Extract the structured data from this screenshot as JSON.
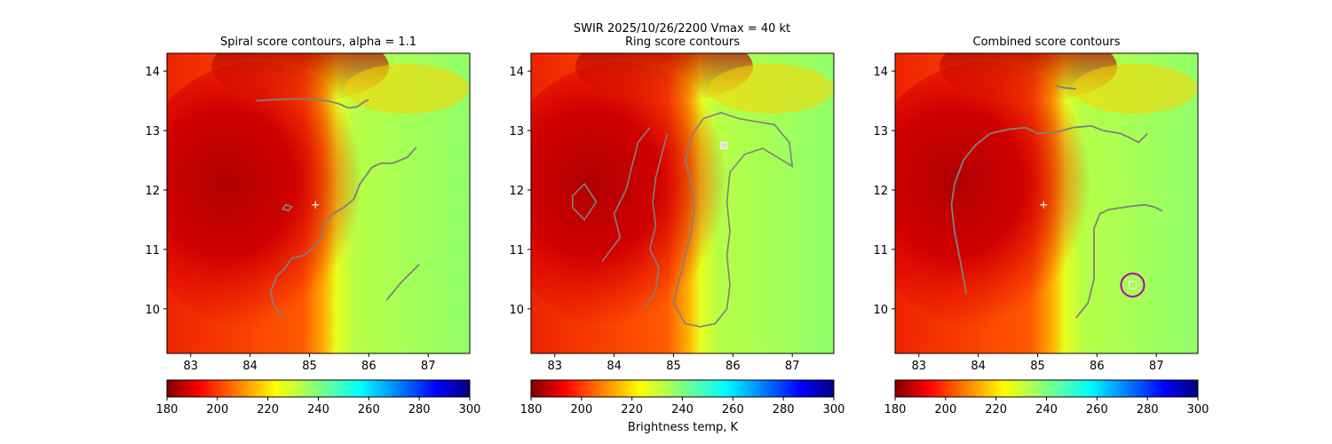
{
  "suptitle_line1": "SWIR  2025/10/26/2200    Vmax = 40 kt",
  "colorbar_label": "Brightness temp, K",
  "colormap": "jet",
  "contour_color": "#808080",
  "chart_data": [
    {
      "type": "heatmap",
      "title": "Spiral score contours, alpha =  1.1",
      "xlim": [
        82.6,
        87.7
      ],
      "ylim": [
        9.25,
        14.3
      ],
      "xticks": [
        "83",
        "84",
        "85",
        "86",
        "87"
      ],
      "yticks": [
        "10",
        "11",
        "12",
        "13",
        "14"
      ],
      "center_marker": {
        "symbol": "+",
        "lon": 85.1,
        "lat": 11.75
      },
      "contours": [
        [
          [
            84.1,
            13.5
          ],
          [
            84.4,
            13.52
          ],
          [
            84.7,
            13.53
          ],
          [
            85.0,
            13.53
          ],
          [
            85.3,
            13.5
          ],
          [
            85.5,
            13.45
          ],
          [
            85.65,
            13.38
          ],
          [
            85.8,
            13.4
          ],
          [
            85.95,
            13.5
          ],
          [
            86.0,
            13.52
          ]
        ],
        [
          [
            86.8,
            12.72
          ],
          [
            86.65,
            12.55
          ],
          [
            86.4,
            12.45
          ],
          [
            86.2,
            12.45
          ],
          [
            86.05,
            12.38
          ],
          [
            85.85,
            12.1
          ],
          [
            85.75,
            11.85
          ],
          [
            85.6,
            11.72
          ],
          [
            85.4,
            11.6
          ],
          [
            85.25,
            11.45
          ],
          [
            85.2,
            11.2
          ],
          [
            85.1,
            11.05
          ],
          [
            84.9,
            10.9
          ],
          [
            84.7,
            10.85
          ],
          [
            84.6,
            10.7
          ],
          [
            84.45,
            10.55
          ],
          [
            84.35,
            10.3
          ],
          [
            84.38,
            10.1
          ],
          [
            84.55,
            9.85
          ]
        ],
        [
          [
            86.3,
            10.15
          ],
          [
            86.55,
            10.45
          ],
          [
            86.85,
            10.75
          ]
        ],
        [
          [
            84.65,
            11.65
          ],
          [
            84.7,
            11.72
          ],
          [
            84.6,
            11.75
          ],
          [
            84.55,
            11.68
          ],
          [
            84.65,
            11.65
          ]
        ]
      ]
    },
    {
      "type": "heatmap",
      "title": "Ring score contours",
      "xlim": [
        82.6,
        87.7
      ],
      "ylim": [
        9.25,
        14.3
      ],
      "xticks": [
        "83",
        "84",
        "85",
        "86",
        "87"
      ],
      "yticks": [
        "10",
        "11",
        "12",
        "13",
        "14"
      ],
      "square_marker": {
        "lon": 85.85,
        "lat": 12.75
      },
      "contours": [
        [
          [
            85.2,
            9.75
          ],
          [
            85.45,
            9.7
          ],
          [
            85.7,
            9.75
          ],
          [
            85.9,
            10.0
          ],
          [
            85.95,
            10.4
          ],
          [
            85.9,
            10.9
          ],
          [
            85.95,
            11.3
          ],
          [
            85.9,
            11.8
          ],
          [
            85.95,
            12.3
          ],
          [
            86.2,
            12.6
          ],
          [
            86.5,
            12.7
          ],
          [
            86.75,
            12.55
          ],
          [
            87.0,
            12.4
          ],
          [
            86.95,
            12.8
          ],
          [
            86.7,
            13.1
          ],
          [
            86.4,
            13.15
          ],
          [
            86.1,
            13.2
          ],
          [
            85.8,
            13.3
          ],
          [
            85.5,
            13.2
          ],
          [
            85.3,
            12.9
          ],
          [
            85.2,
            12.5
          ],
          [
            85.3,
            12.1
          ],
          [
            85.35,
            11.7
          ],
          [
            85.3,
            11.3
          ],
          [
            85.2,
            10.9
          ],
          [
            85.1,
            10.5
          ],
          [
            85.0,
            10.1
          ],
          [
            85.2,
            9.75
          ]
        ],
        [
          [
            84.5,
            10.0
          ],
          [
            84.7,
            10.3
          ],
          [
            84.75,
            10.7
          ],
          [
            84.6,
            11.0
          ],
          [
            84.7,
            11.4
          ],
          [
            84.65,
            11.8
          ],
          [
            84.7,
            12.2
          ],
          [
            84.8,
            12.6
          ],
          [
            84.9,
            12.95
          ]
        ],
        [
          [
            83.8,
            10.8
          ],
          [
            84.1,
            11.2
          ],
          [
            84.0,
            11.6
          ],
          [
            84.2,
            12.0
          ],
          [
            84.3,
            12.4
          ],
          [
            84.4,
            12.8
          ],
          [
            84.6,
            13.05
          ]
        ],
        [
          [
            83.3,
            11.7
          ],
          [
            83.5,
            11.5
          ],
          [
            83.7,
            11.8
          ],
          [
            83.5,
            12.1
          ],
          [
            83.3,
            11.9
          ],
          [
            83.3,
            11.7
          ]
        ]
      ]
    },
    {
      "type": "heatmap",
      "title": "Combined score contours",
      "xlim": [
        82.6,
        87.7
      ],
      "ylim": [
        9.25,
        14.3
      ],
      "xticks": [
        "83",
        "84",
        "85",
        "86",
        "87"
      ],
      "yticks": [
        "10",
        "11",
        "12",
        "13",
        "14"
      ],
      "center_marker": {
        "symbol": "+",
        "lon": 85.1,
        "lat": 11.75
      },
      "best_center": {
        "lon": 86.6,
        "lat": 10.4
      },
      "contours": [
        [
          [
            83.8,
            10.25
          ],
          [
            83.7,
            10.8
          ],
          [
            83.6,
            11.3
          ],
          [
            83.55,
            11.75
          ],
          [
            83.6,
            12.1
          ],
          [
            83.75,
            12.5
          ],
          [
            83.95,
            12.75
          ],
          [
            84.2,
            12.95
          ],
          [
            84.5,
            13.02
          ],
          [
            84.8,
            13.05
          ],
          [
            85.0,
            12.95
          ],
          [
            85.3,
            12.97
          ],
          [
            85.6,
            13.05
          ],
          [
            85.9,
            13.08
          ],
          [
            86.1,
            13.0
          ],
          [
            86.4,
            12.95
          ],
          [
            86.55,
            12.88
          ],
          [
            86.7,
            12.8
          ],
          [
            86.85,
            12.95
          ]
        ],
        [
          [
            85.65,
            9.85
          ],
          [
            85.85,
            10.1
          ],
          [
            85.95,
            10.5
          ],
          [
            85.95,
            11.0
          ],
          [
            85.95,
            11.35
          ],
          [
            86.05,
            11.6
          ],
          [
            86.2,
            11.67
          ],
          [
            86.4,
            11.7
          ],
          [
            86.6,
            11.73
          ],
          [
            86.8,
            11.75
          ],
          [
            86.95,
            11.72
          ],
          [
            87.1,
            11.65
          ]
        ],
        [
          [
            85.3,
            13.75
          ],
          [
            85.45,
            13.72
          ],
          [
            85.65,
            13.7
          ]
        ]
      ]
    }
  ],
  "colorbars": [
    {
      "ticks": [
        "180",
        "200",
        "220",
        "240",
        "260",
        "280",
        "300"
      ],
      "range": [
        180,
        300
      ]
    },
    {
      "ticks": [
        "180",
        "200",
        "220",
        "240",
        "260",
        "280",
        "300"
      ],
      "range": [
        180,
        300
      ]
    },
    {
      "ticks": [
        "180",
        "200",
        "220",
        "240",
        "260",
        "280",
        "300"
      ],
      "range": [
        180,
        300
      ]
    }
  ]
}
